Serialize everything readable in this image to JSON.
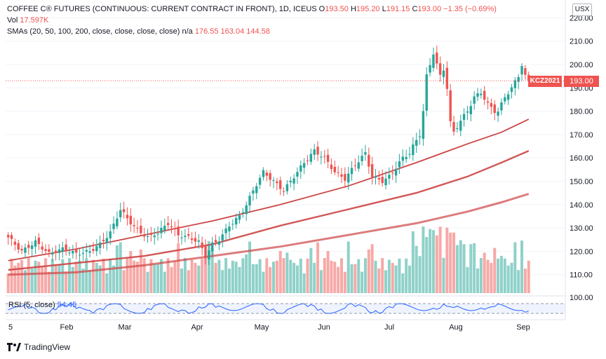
{
  "header": {
    "symbol_line": "COFFEE C® FUTURES (CONTINUOUS: CURRENT CONTRACT IN FRONT), 1D, ICEUS",
    "open_label": "O",
    "open_value": "193.50",
    "high_label": "H",
    "high_value": "195.20",
    "low_label": "L",
    "low_value": "191.15",
    "close_label": "C",
    "close_value": "193.00",
    "change": "−1.35 (−0.69%)",
    "vol_label": "Vol",
    "vol_value": "17.597K",
    "sma_label": "SMAs (20, 50, 100, 200, close, close, close, close)",
    "sma_na": "n/a",
    "sma_values": [
      "176.55",
      "163.04",
      "144.58"
    ]
  },
  "currency_button": "USX",
  "price_tag": {
    "symbol": "KCZ2021",
    "value": "193.00"
  },
  "rsi": {
    "label": "RSI (5, close)",
    "value": "54.45"
  },
  "branding": "TradingView",
  "colors": {
    "up": "#26a69a",
    "down": "#ef5350",
    "up_vol": "#8fd1c9",
    "down_vol": "#f7a9a7",
    "rsi": "#2962ff",
    "sma": "#cd4545"
  },
  "chart_data": {
    "type": "candlestick",
    "price_axis": {
      "ticks": [
        110,
        120,
        130,
        140,
        150,
        160,
        170,
        180,
        190,
        200,
        210,
        220
      ],
      "range": [
        105,
        224
      ]
    },
    "time_axis": {
      "labels": [
        "5",
        "Feb",
        "Mar",
        "Apr",
        "May",
        "Jun",
        "Jul",
        "Aug",
        "Sep"
      ]
    },
    "rsi_axis": {
      "ticks": [
        100
      ]
    },
    "last_price": 193.0,
    "keypoints_close": [
      [
        0,
        126
      ],
      [
        4,
        120
      ],
      [
        8,
        124
      ],
      [
        12,
        119
      ],
      [
        16,
        121
      ],
      [
        20,
        119
      ],
      [
        24,
        120
      ],
      [
        27,
        123
      ],
      [
        30,
        128
      ],
      [
        33,
        138
      ],
      [
        35,
        134
      ],
      [
        38,
        129
      ],
      [
        41,
        126
      ],
      [
        44,
        128
      ],
      [
        47,
        132
      ],
      [
        50,
        127
      ],
      [
        53,
        126
      ],
      [
        56,
        124
      ],
      [
        58,
        118
      ],
      [
        60,
        123
      ],
      [
        62,
        125
      ],
      [
        65,
        131
      ],
      [
        68,
        135
      ],
      [
        70,
        140
      ],
      [
        72,
        146
      ],
      [
        75,
        154
      ],
      [
        78,
        150
      ],
      [
        81,
        146
      ],
      [
        84,
        152
      ],
      [
        87,
        158
      ],
      [
        90,
        163
      ],
      [
        93,
        160
      ],
      [
        96,
        154
      ],
      [
        99,
        151
      ],
      [
        102,
        157
      ],
      [
        105,
        162
      ],
      [
        107,
        152
      ],
      [
        110,
        150
      ],
      [
        112,
        152
      ],
      [
        114,
        156
      ],
      [
        116,
        160
      ],
      [
        118,
        162
      ],
      [
        119,
        165
      ],
      [
        121,
        170
      ],
      [
        122,
        180
      ],
      [
        123,
        195
      ],
      [
        125,
        205
      ],
      [
        126,
        200
      ],
      [
        127,
        195
      ],
      [
        128,
        198
      ],
      [
        129,
        190
      ],
      [
        130,
        175
      ],
      [
        131,
        171
      ],
      [
        133,
        176
      ],
      [
        135,
        180
      ],
      [
        137,
        186
      ],
      [
        139,
        188
      ],
      [
        141,
        183
      ],
      [
        143,
        180
      ],
      [
        144,
        180
      ],
      [
        146,
        186
      ],
      [
        148,
        190
      ],
      [
        150,
        195
      ],
      [
        151,
        200
      ],
      [
        152,
        195
      ],
      [
        153,
        193
      ]
    ],
    "sma_lines": [
      {
        "period": 50,
        "value": 176.55,
        "points": [
          [
            0,
            116
          ],
          [
            20,
            121
          ],
          [
            40,
            127
          ],
          [
            60,
            133
          ],
          [
            80,
            140
          ],
          [
            100,
            148
          ],
          [
            120,
            158
          ],
          [
            135,
            166
          ],
          [
            145,
            171
          ],
          [
            153,
            176.55
          ]
        ]
      },
      {
        "period": 100,
        "value": 163.04,
        "points": [
          [
            0,
            112
          ],
          [
            20,
            115
          ],
          [
            40,
            118
          ],
          [
            60,
            123
          ],
          [
            80,
            131
          ],
          [
            100,
            138
          ],
          [
            120,
            145
          ],
          [
            135,
            152
          ],
          [
            145,
            158
          ],
          [
            153,
            163.04
          ]
        ]
      },
      {
        "period": 200,
        "value": 144.58,
        "points": [
          [
            0,
            110
          ],
          [
            20,
            111
          ],
          [
            40,
            114
          ],
          [
            60,
            118
          ],
          [
            80,
            122
          ],
          [
            100,
            127
          ],
          [
            120,
            132
          ],
          [
            135,
            137
          ],
          [
            145,
            141
          ],
          [
            153,
            144.58
          ]
        ]
      }
    ]
  }
}
